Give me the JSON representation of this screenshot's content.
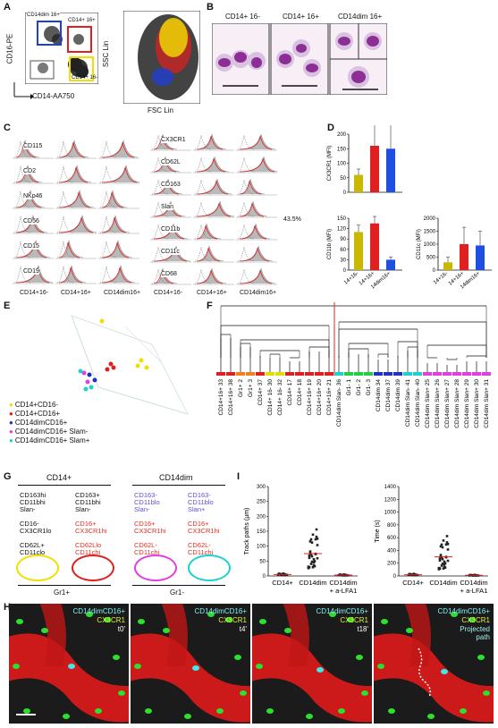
{
  "panel_letters": {
    "A": "A",
    "B": "B",
    "C": "C",
    "D": "D",
    "E": "E",
    "F": "F",
    "G": "G",
    "H": "H",
    "I": "I"
  },
  "panelA": {
    "gates": [
      "CD14dim 16+",
      "CD14+ 16+",
      "CD14+ 16-"
    ],
    "y_axis": "CD16-PE",
    "x_axis": "CD14-AA750",
    "scatter_y": "SSC Lin",
    "scatter_x": "FSC Lin",
    "colors": {
      "blue": "#1f3fd1",
      "red": "#e02020",
      "yellow": "#f0e000"
    }
  },
  "panelB": {
    "titles": [
      "CD14+ 16-",
      "CD14+ 16+",
      "CD14dim 16+"
    ]
  },
  "panelC": {
    "left_markers": [
      "CD115",
      "CD2",
      "NKp46",
      "CD56",
      "CD15",
      "CD19"
    ],
    "right_markers": [
      "CX3CR1",
      "CD62L",
      "CD163",
      "Slan",
      "CD11b",
      "CD11c",
      "CD68"
    ],
    "slan_pct": "43.5%",
    "columns": [
      "CD14+16-",
      "CD14+16+",
      "CD14dim16+"
    ]
  },
  "panelD": {
    "chart1": {
      "ylabel": "CX3CR1 (MFI)",
      "yticks": [
        "0",
        "50",
        "100",
        "150",
        "200"
      ]
    },
    "chart2": {
      "ylabel": "CD11b (MFI)",
      "yticks": [
        "0",
        "30",
        "60",
        "90",
        "120",
        "150"
      ]
    },
    "chart3": {
      "ylabel": "CD11c (MFI)",
      "yticks": [
        "0",
        "500",
        "1000",
        "1500",
        "2000"
      ]
    },
    "categories": [
      "14+16-",
      "14+16+",
      "14dim16+"
    ]
  },
  "chart_data": [
    {
      "type": "bar",
      "title": "",
      "ylabel": "CX3CR1 (MFI)",
      "categories": [
        "14+16-",
        "14+16+",
        "14dim16+"
      ],
      "values": [
        60,
        160,
        150
      ],
      "errors": [
        20,
        100,
        90
      ],
      "ylim": [
        0,
        200
      ],
      "colors": [
        "#c9b800",
        "#e02020",
        "#1f4fe0"
      ]
    },
    {
      "type": "bar",
      "title": "",
      "ylabel": "CD11b (MFI)",
      "categories": [
        "14+16-",
        "14+16+",
        "14dim16+"
      ],
      "values": [
        110,
        135,
        30
      ],
      "errors": [
        20,
        20,
        8
      ],
      "ylim": [
        0,
        150
      ],
      "colors": [
        "#c9b800",
        "#e02020",
        "#1f4fe0"
      ]
    },
    {
      "type": "bar",
      "title": "",
      "ylabel": "CD11c (MFI)",
      "categories": [
        "14+16-",
        "14+16+",
        "14dim16+"
      ],
      "values": [
        300,
        1000,
        950
      ],
      "errors": [
        200,
        650,
        550
      ],
      "ylim": [
        0,
        2000
      ],
      "colors": [
        "#c9b800",
        "#e02020",
        "#1f4fe0"
      ]
    },
    {
      "type": "scatter",
      "title": "",
      "ylabel": "Track paths (µm)",
      "categories": [
        "CD14+",
        "CD14dim",
        "CD14dim + a-LFA1"
      ],
      "ylim": [
        0,
        300
      ],
      "yticks": [
        0,
        50,
        100,
        150,
        200,
        250,
        300
      ],
      "medians": [
        5,
        75,
        3
      ]
    },
    {
      "type": "scatter",
      "title": "",
      "ylabel": "Time (s)",
      "categories": [
        "CD14+",
        "CD14dim",
        "CD14dim + a-LFA1"
      ],
      "ylim": [
        0,
        1400
      ],
      "yticks": [
        0,
        200,
        400,
        600,
        800,
        1000,
        1200,
        1400
      ],
      "medians": [
        20,
        300,
        10
      ]
    }
  ],
  "panelE": {
    "legend": [
      "CD14+CD16-",
      "CD14+CD16+",
      "CD14dimCD16+",
      "CD14dimCD16+ Slam-",
      "CD14dimCD16+ Slam+"
    ],
    "colors": [
      "#f0e000",
      "#e02020",
      "#2030c0",
      "#e040e0",
      "#20d0d0"
    ]
  },
  "panelF": {
    "leaves": [
      "CD14+16+ 33",
      "CD14+16+ 38",
      "Gr1+ 2",
      "Gr1+ 3",
      "CD14+ 37",
      "CD14+ 16- 30",
      "CD14+ 16- 32",
      "CD14+ 17",
      "CD14+ 18",
      "CD14+16+ 19",
      "CD14+16+ 20",
      "CD14+16+ 21",
      "CD14dim Slan- 36",
      "Gr1- 1",
      "Gr1- 2",
      "Gr1- 3",
      "CD14dim 34",
      "CD14dim 37",
      "CD14dim 39",
      "CD14dim Slan- 41",
      "CD14dim Slan- 40",
      "CD14dim Slan+ 25",
      "CD14dim Slan+ 26",
      "CD14dim Slan+ 27",
      "CD14dim Slan+ 28",
      "CD14dim Slan+ 29",
      "CD14dim Slan+ 30",
      "CD14dim Slan+ 31"
    ]
  },
  "panelG": {
    "headers": [
      "CD14+",
      "CD14dim"
    ],
    "col1": [
      "CD163hi",
      "CD11bhi",
      "Slan-",
      "CD16-",
      "CX3CR1lo",
      "CD62L+",
      "CD11clo"
    ],
    "col2": [
      "CD163+",
      "CD11bhi",
      "Slan-",
      "CD16+",
      "CX3CR1hi",
      "CD62Llo",
      "CD11chi"
    ],
    "col3": [
      "CD163-",
      "CD11blo",
      "Slan-",
      "CD16+",
      "CX3CR1hi",
      "CD62L-",
      "CD11chi"
    ],
    "col4": [
      "CD163-",
      "CD11blo",
      "Slan+",
      "CD16+",
      "CX3CR1hi",
      "CD62L-",
      "CD11chi"
    ],
    "footers": [
      "Gr1+",
      "Gr1-"
    ]
  },
  "panelH": {
    "frames": [
      {
        "title": "CD14dimCD16+",
        "sub": "CX3CR1",
        "time": "t0'"
      },
      {
        "title": "CD14dimCD16+",
        "sub": "CX3CR1",
        "time": "t4'"
      },
      {
        "title": "CD14dimCD16+",
        "sub": "CX3CR1",
        "time": "t18'"
      },
      {
        "title": "CD14dimCD16+",
        "sub": "CX3CR1",
        "time": "Projected path"
      }
    ]
  }
}
